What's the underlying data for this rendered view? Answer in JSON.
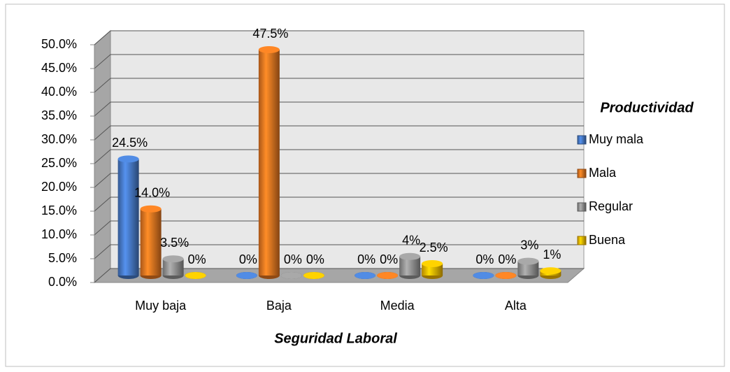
{
  "chart_data": {
    "type": "bar3d",
    "x_label": "Seguridad Laboral",
    "legend_title": "Productividad",
    "categories": [
      "Muy baja",
      "Baja",
      "Media",
      "Alta"
    ],
    "series": [
      {
        "name": "Muy mala",
        "color": "#4a7fd0",
        "values": [
          24.5,
          0,
          0,
          0
        ],
        "value_labels": [
          "24.5%",
          "0%",
          "0%",
          "0%"
        ]
      },
      {
        "name": "Mala",
        "color": "#f07b22",
        "values": [
          14.0,
          47.5,
          0,
          0
        ],
        "value_labels": [
          "14.0%",
          "47.5%",
          "0%",
          "0%"
        ]
      },
      {
        "name": "Regular",
        "color": "#9a9a9a",
        "values": [
          3.5,
          0,
          4,
          3
        ],
        "value_labels": [
          "3.5%",
          "0%",
          "4%",
          "3%"
        ]
      },
      {
        "name": "Buena",
        "color": "#ffc000",
        "values": [
          0,
          0,
          2.5,
          1
        ],
        "value_labels": [
          "0%",
          "0%",
          "2.5%",
          "1%"
        ]
      }
    ],
    "ylim": [
      0,
      50
    ],
    "yticks": [
      {
        "value": 0,
        "label": "0.0%"
      },
      {
        "value": 5,
        "label": "5.0%"
      },
      {
        "value": 10,
        "label": "10.0%"
      },
      {
        "value": 15,
        "label": "15.0%"
      },
      {
        "value": 20,
        "label": "20.0%"
      },
      {
        "value": 25,
        "label": "25.0%"
      },
      {
        "value": 30,
        "label": "30.0%"
      },
      {
        "value": 35,
        "label": "35.0%"
      },
      {
        "value": 40,
        "label": "40.0%"
      },
      {
        "value": 45,
        "label": "45.0%"
      },
      {
        "value": 50,
        "label": "50.0%"
      }
    ],
    "grid": true,
    "legend": "right"
  }
}
